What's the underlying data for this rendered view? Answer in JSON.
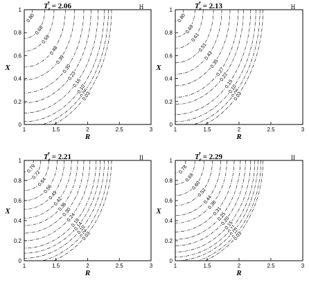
{
  "chart_data": [
    {
      "type": "contour",
      "title": {
        "symbol": "T",
        "subscript": "r",
        "superscript": "*",
        "text": " = 2.06"
      },
      "tag": "H",
      "xlabel": "R",
      "ylabel": "X",
      "xlim": [
        1,
        3
      ],
      "ylim": [
        0,
        1
      ],
      "xticks": [
        1,
        1.5,
        2,
        2.5,
        3
      ],
      "yticks": [
        0,
        0.2,
        0.4,
        0.6,
        0.8,
        1
      ],
      "values": [
        0.8,
        0.68,
        0.59,
        0.48,
        0.39,
        0.3,
        0.23,
        0.16,
        0.1,
        0.06,
        0.03
      ],
      "value_labels": [
        "0.80",
        "0.68",
        "0.59",
        "0.48",
        "0.39",
        "0.30",
        "0.23",
        "0.16",
        "0.10",
        "0.06",
        "0.03"
      ]
    },
    {
      "type": "contour",
      "title": {
        "symbol": "T",
        "subscript": "r",
        "superscript": "*",
        "text": " = 2.13"
      },
      "tag": "H",
      "xlabel": "R",
      "ylabel": "X",
      "xlim": [
        1,
        3
      ],
      "ylim": [
        0,
        1
      ],
      "xticks": [
        1,
        1.5,
        2,
        2.5,
        3
      ],
      "yticks": [
        0,
        0.2,
        0.4,
        0.6,
        0.8,
        1
      ],
      "values": [
        0.8,
        0.69,
        0.61,
        0.51,
        0.43,
        0.35,
        0.27,
        0.22,
        0.15,
        0.1,
        0.06,
        0.03
      ],
      "value_labels": [
        "0.80",
        "0.69",
        "0.61",
        "0.51",
        "0.43",
        "0.35",
        "0.27",
        "0.22",
        "0.15",
        "0.10",
        "0.06",
        "0.03"
      ]
    },
    {
      "type": "contour",
      "title": {
        "symbol": "T",
        "subscript": "r",
        "superscript": "*",
        "text": " = 2.21"
      },
      "tag": "II",
      "xlabel": "R",
      "ylabel": "X",
      "xlim": [
        1,
        3
      ],
      "ylim": [
        0,
        1
      ],
      "xticks": [
        1,
        1.5,
        2,
        2.5,
        3
      ],
      "yticks": [
        0,
        0.2,
        0.4,
        0.6,
        0.8,
        1
      ],
      "values": [
        0.79,
        0.72,
        0.64,
        0.56,
        0.49,
        0.42,
        0.36,
        0.3,
        0.24,
        0.18,
        0.14,
        0.1,
        0.06,
        0.03
      ],
      "value_labels": [
        "0.79",
        "0.72",
        "0.64",
        "0.56",
        "0.49",
        "0.42",
        "0.36",
        "0.30",
        "0.24",
        "0.18",
        "0.14",
        "0.10",
        "0.06",
        "0.03"
      ]
    },
    {
      "type": "contour",
      "title": {
        "symbol": "T",
        "subscript": "r",
        "superscript": "*",
        "text": " = 2.29"
      },
      "tag": "II",
      "xlabel": "R",
      "ylabel": "X",
      "xlim": [
        1,
        3
      ],
      "ylim": [
        0,
        1
      ],
      "xticks": [
        1,
        1.5,
        2,
        2.5,
        3
      ],
      "yticks": [
        0,
        0.2,
        0.4,
        0.6,
        0.8,
        1
      ],
      "values": [
        0.78,
        0.69,
        0.6,
        0.52,
        0.44,
        0.38,
        0.31,
        0.25,
        0.2,
        0.15,
        0.11,
        0.08,
        0.05,
        0.03
      ],
      "value_labels": [
        "0.78",
        "0.69",
        "0.60",
        "0.52",
        "0.44",
        "0.38",
        "0.31",
        "0.25",
        "0.20",
        "0.15",
        "0.11",
        "0.08",
        "0.05",
        "0.03"
      ]
    }
  ]
}
